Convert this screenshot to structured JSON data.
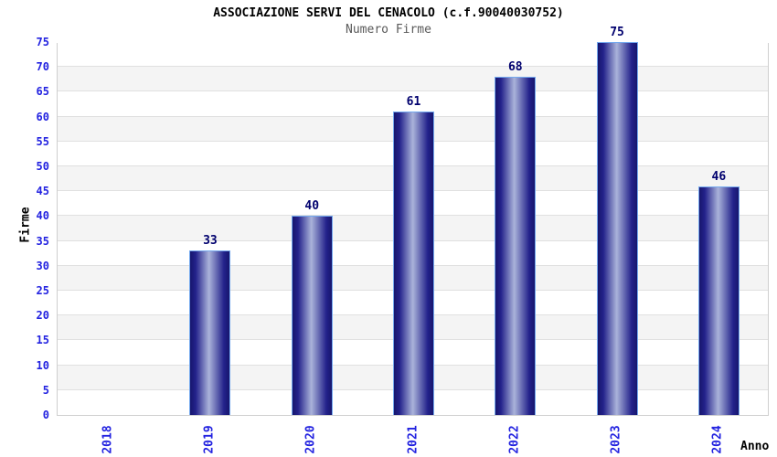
{
  "chart_data": {
    "type": "bar",
    "title": "ASSOCIAZIONE SERVI DEL CENACOLO (c.f.90040030752)",
    "subtitle": "Numero Firme",
    "xlabel": "Anno",
    "ylabel": "Firme",
    "categories": [
      "2018",
      "2019",
      "2020",
      "2021",
      "2022",
      "2023",
      "2024"
    ],
    "values": [
      0,
      33,
      40,
      61,
      68,
      75,
      46
    ],
    "ylim": [
      0,
      75
    ],
    "ytick_step": 5,
    "yticks": [
      0,
      5,
      10,
      15,
      20,
      25,
      30,
      35,
      40,
      45,
      50,
      55,
      60,
      65,
      70,
      75
    ],
    "grid": "horizontal gridlines with alternating shaded bands",
    "legend": "none",
    "bar_value_labels_shown": true,
    "colors": {
      "background": "#ffffff",
      "plot_border": "#cfcfcf",
      "band_gray": "#f4f4f4",
      "band_white": "#ffffff",
      "gridline": "#e0e0e0",
      "bar_dark": "#17166d",
      "bar_mid": "#23228b",
      "bar_light": "#aab3da",
      "bar_border": "#74a9ef",
      "tick_label": "#2222e0",
      "value_label": "#00006e",
      "title_text": "#000000",
      "subtitle_text": "#5a5a5a",
      "axis_label_text": "#000000"
    }
  }
}
